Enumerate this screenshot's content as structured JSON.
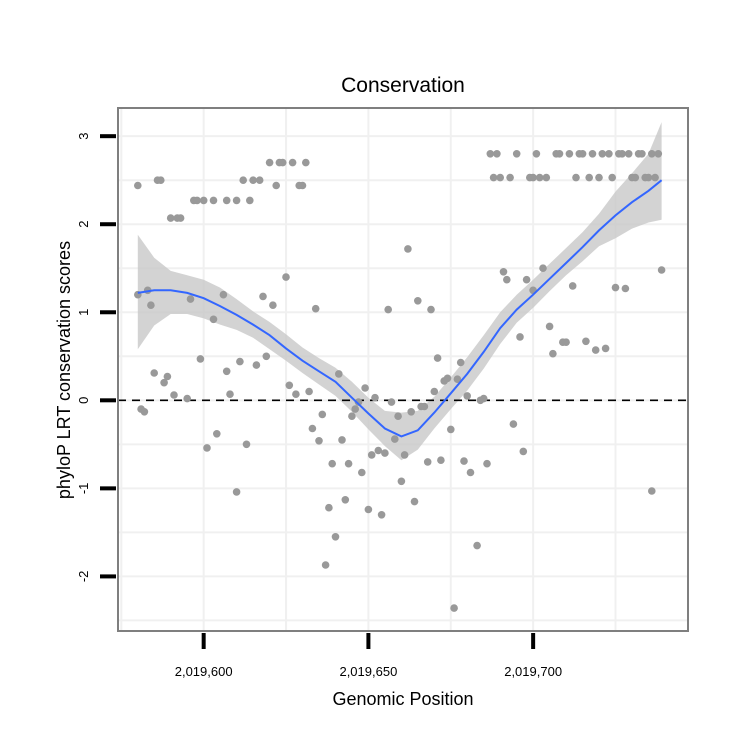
{
  "chart_data": {
    "type": "scatter",
    "title": "Conservation",
    "xlabel": "Genomic Position",
    "ylabel": "phyloP LRT conservation scores",
    "xlim": [
      2019574,
      2019747
    ],
    "ylim": [
      -2.62,
      3.32
    ],
    "xticks": [
      2019600,
      2019650,
      2019700
    ],
    "xtick_labels": [
      "2,019,600",
      "2,019,650",
      "2,019,700"
    ],
    "yticks": [
      -2,
      -1,
      0,
      1,
      2,
      3
    ],
    "ytick_labels": [
      "-2",
      "-1",
      "0",
      "1",
      "2",
      "3"
    ],
    "grid": true,
    "reference_line": {
      "y": 0,
      "style": "dashed"
    },
    "colors": {
      "points": "#999999",
      "smooth": "#3366FF",
      "band": "#C8C8C8",
      "panel_border": "#7F7F7F",
      "grid": "#F0F0F0"
    },
    "series": [
      {
        "name": "observations",
        "type": "scatter",
        "points": [
          [
            2019580,
            2.44
          ],
          [
            2019580,
            1.2
          ],
          [
            2019581,
            -0.1
          ],
          [
            2019582,
            -0.13
          ],
          [
            2019583,
            1.25
          ],
          [
            2019584,
            1.08
          ],
          [
            2019585,
            0.31
          ],
          [
            2019586,
            2.5
          ],
          [
            2019587,
            2.5
          ],
          [
            2019588,
            0.2
          ],
          [
            2019589,
            0.27
          ],
          [
            2019590,
            2.07
          ],
          [
            2019591,
            0.06
          ],
          [
            2019592,
            2.07
          ],
          [
            2019593,
            2.07
          ],
          [
            2019595,
            0.02
          ],
          [
            2019596,
            1.15
          ],
          [
            2019597,
            2.27
          ],
          [
            2019598,
            2.27
          ],
          [
            2019599,
            0.47
          ],
          [
            2019600,
            2.27
          ],
          [
            2019601,
            -0.54
          ],
          [
            2019603,
            2.27
          ],
          [
            2019603,
            0.92
          ],
          [
            2019604,
            -0.38
          ],
          [
            2019606,
            1.2
          ],
          [
            2019607,
            2.27
          ],
          [
            2019607,
            0.33
          ],
          [
            2019608,
            0.07
          ],
          [
            2019610,
            2.27
          ],
          [
            2019610,
            -1.04
          ],
          [
            2019611,
            0.44
          ],
          [
            2019612,
            2.5
          ],
          [
            2019613,
            -0.5
          ],
          [
            2019614,
            2.27
          ],
          [
            2019615,
            2.5
          ],
          [
            2019616,
            0.4
          ],
          [
            2019617,
            2.5
          ],
          [
            2019618,
            1.18
          ],
          [
            2019619,
            0.5
          ],
          [
            2019620,
            2.7
          ],
          [
            2019621,
            1.08
          ],
          [
            2019622,
            2.44
          ],
          [
            2019623,
            2.7
          ],
          [
            2019624,
            2.7
          ],
          [
            2019625,
            1.4
          ],
          [
            2019626,
            0.17
          ],
          [
            2019627,
            2.7
          ],
          [
            2019628,
            0.07
          ],
          [
            2019629,
            2.44
          ],
          [
            2019630,
            2.44
          ],
          [
            2019631,
            2.7
          ],
          [
            2019632,
            0.1
          ],
          [
            2019633,
            -0.32
          ],
          [
            2019634,
            1.04
          ],
          [
            2019635,
            -0.46
          ],
          [
            2019636,
            -0.16
          ],
          [
            2019637,
            -1.87
          ],
          [
            2019638,
            -1.22
          ],
          [
            2019639,
            -0.72
          ],
          [
            2019640,
            -1.55
          ],
          [
            2019641,
            0.3
          ],
          [
            2019642,
            -0.45
          ],
          [
            2019643,
            -1.13
          ],
          [
            2019644,
            -0.72
          ],
          [
            2019645,
            -0.18
          ],
          [
            2019646,
            -0.1
          ],
          [
            2019647,
            -0.02
          ],
          [
            2019648,
            -0.82
          ],
          [
            2019649,
            0.14
          ],
          [
            2019650,
            -1.24
          ],
          [
            2019651,
            -0.62
          ],
          [
            2019652,
            0.03
          ],
          [
            2019653,
            -0.57
          ],
          [
            2019654,
            -1.3
          ],
          [
            2019655,
            -0.6
          ],
          [
            2019656,
            1.03
          ],
          [
            2019657,
            -0.02
          ],
          [
            2019658,
            -0.44
          ],
          [
            2019659,
            -0.18
          ],
          [
            2019660,
            -0.92
          ],
          [
            2019661,
            -0.62
          ],
          [
            2019662,
            1.72
          ],
          [
            2019663,
            -0.13
          ],
          [
            2019664,
            -1.15
          ],
          [
            2019665,
            1.13
          ],
          [
            2019666,
            -0.07
          ],
          [
            2019667,
            -0.07
          ],
          [
            2019668,
            -0.7
          ],
          [
            2019669,
            1.03
          ],
          [
            2019670,
            0.1
          ],
          [
            2019671,
            0.48
          ],
          [
            2019672,
            -0.68
          ],
          [
            2019673,
            0.22
          ],
          [
            2019674,
            0.25
          ],
          [
            2019675,
            -0.33
          ],
          [
            2019676,
            -2.36
          ],
          [
            2019677,
            0.24
          ],
          [
            2019678,
            0.43
          ],
          [
            2019679,
            -0.69
          ],
          [
            2019680,
            0.05
          ],
          [
            2019681,
            -0.82
          ],
          [
            2019683,
            -1.65
          ],
          [
            2019684,
            0.0
          ],
          [
            2019685,
            0.02
          ],
          [
            2019686,
            -0.72
          ],
          [
            2019687,
            2.8
          ],
          [
            2019688,
            2.53
          ],
          [
            2019689,
            2.8
          ],
          [
            2019690,
            2.53
          ],
          [
            2019691,
            1.46
          ],
          [
            2019692,
            1.37
          ],
          [
            2019693,
            2.53
          ],
          [
            2019694,
            -0.27
          ],
          [
            2019695,
            2.8
          ],
          [
            2019696,
            0.72
          ],
          [
            2019697,
            -0.58
          ],
          [
            2019698,
            1.37
          ],
          [
            2019699,
            2.53
          ],
          [
            2019700,
            2.53
          ],
          [
            2019700,
            1.25
          ],
          [
            2019701,
            2.8
          ],
          [
            2019702,
            2.53
          ],
          [
            2019703,
            1.5
          ],
          [
            2019704,
            2.53
          ],
          [
            2019705,
            0.84
          ],
          [
            2019706,
            0.53
          ],
          [
            2019707,
            2.8
          ],
          [
            2019708,
            2.8
          ],
          [
            2019709,
            0.66
          ],
          [
            2019710,
            0.66
          ],
          [
            2019711,
            2.8
          ],
          [
            2019712,
            1.3
          ],
          [
            2019713,
            2.53
          ],
          [
            2019714,
            2.8
          ],
          [
            2019715,
            2.8
          ],
          [
            2019716,
            0.67
          ],
          [
            2019717,
            2.53
          ],
          [
            2019718,
            2.8
          ],
          [
            2019719,
            0.57
          ],
          [
            2019720,
            2.53
          ],
          [
            2019721,
            2.8
          ],
          [
            2019722,
            0.59
          ],
          [
            2019723,
            2.8
          ],
          [
            2019724,
            2.53
          ],
          [
            2019725,
            1.28
          ],
          [
            2019726,
            2.8
          ],
          [
            2019727,
            2.8
          ],
          [
            2019728,
            1.27
          ],
          [
            2019729,
            2.8
          ],
          [
            2019730,
            2.53
          ],
          [
            2019731,
            2.53
          ],
          [
            2019732,
            2.8
          ],
          [
            2019733,
            2.8
          ],
          [
            2019734,
            2.53
          ],
          [
            2019735,
            2.53
          ],
          [
            2019736,
            2.8
          ],
          [
            2019736,
            -1.03
          ],
          [
            2019737,
            2.53
          ],
          [
            2019738,
            2.8
          ],
          [
            2019739,
            1.48
          ]
        ]
      },
      {
        "name": "loess fit",
        "type": "line",
        "x": [
          2019580,
          2019585,
          2019590,
          2019595,
          2019600,
          2019605,
          2019610,
          2019615,
          2019620,
          2019625,
          2019630,
          2019635,
          2019640,
          2019645,
          2019650,
          2019655,
          2019660,
          2019665,
          2019670,
          2019675,
          2019680,
          2019685,
          2019690,
          2019695,
          2019700,
          2019705,
          2019710,
          2019715,
          2019720,
          2019725,
          2019730,
          2019735,
          2019739
        ],
        "y": [
          1.22,
          1.25,
          1.25,
          1.22,
          1.16,
          1.07,
          0.97,
          0.86,
          0.74,
          0.59,
          0.45,
          0.33,
          0.21,
          0.03,
          -0.15,
          -0.32,
          -0.41,
          -0.34,
          -0.14,
          0.08,
          0.3,
          0.55,
          0.82,
          1.03,
          1.2,
          1.38,
          1.56,
          1.74,
          1.93,
          2.1,
          2.25,
          2.38,
          2.5
        ],
        "lower": [
          0.58,
          0.85,
          0.98,
          0.98,
          0.93,
          0.86,
          0.8,
          0.71,
          0.58,
          0.45,
          0.31,
          0.18,
          0.05,
          -0.13,
          -0.33,
          -0.52,
          -0.68,
          -0.56,
          -0.32,
          -0.1,
          0.11,
          0.36,
          0.64,
          0.88,
          1.05,
          1.24,
          1.42,
          1.58,
          1.75,
          1.84,
          1.95,
          2.02,
          2.05
        ],
        "upper": [
          1.88,
          1.62,
          1.47,
          1.42,
          1.37,
          1.28,
          1.15,
          1.01,
          0.89,
          0.75,
          0.6,
          0.48,
          0.37,
          0.21,
          0.03,
          -0.12,
          -0.14,
          -0.12,
          0.04,
          0.26,
          0.49,
          0.74,
          1.0,
          1.2,
          1.37,
          1.55,
          1.73,
          1.91,
          2.12,
          2.37,
          2.58,
          2.8,
          3.16
        ]
      }
    ]
  }
}
